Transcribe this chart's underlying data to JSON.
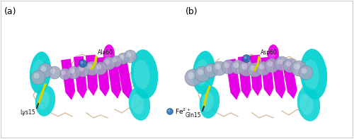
{
  "figsize": [
    5.0,
    1.97
  ],
  "dpi": 100,
  "background_color": "#ffffff",
  "panel_a_label": "(a)",
  "panel_b_label": "(b)",
  "legend_dot_color": "#1e6eb5",
  "legend_text": "Fe",
  "legend_superscript": "2+",
  "label_a_lys": "Lys15",
  "label_a_ala": "Ala60",
  "label_b_gln": "Gln15",
  "label_b_asp": "Asp60",
  "border_color": "#cccccc",
  "magenta": "#e600e6",
  "cyan": "#00d0d0",
  "tan": "#c8a882",
  "sphere_gray": "#a0a8c0",
  "sphere_edge": "#7878a0",
  "yellow": "#d4d400",
  "blue_dot": "#1e6eb5",
  "dark": "#222222",
  "white": "#ffffff"
}
